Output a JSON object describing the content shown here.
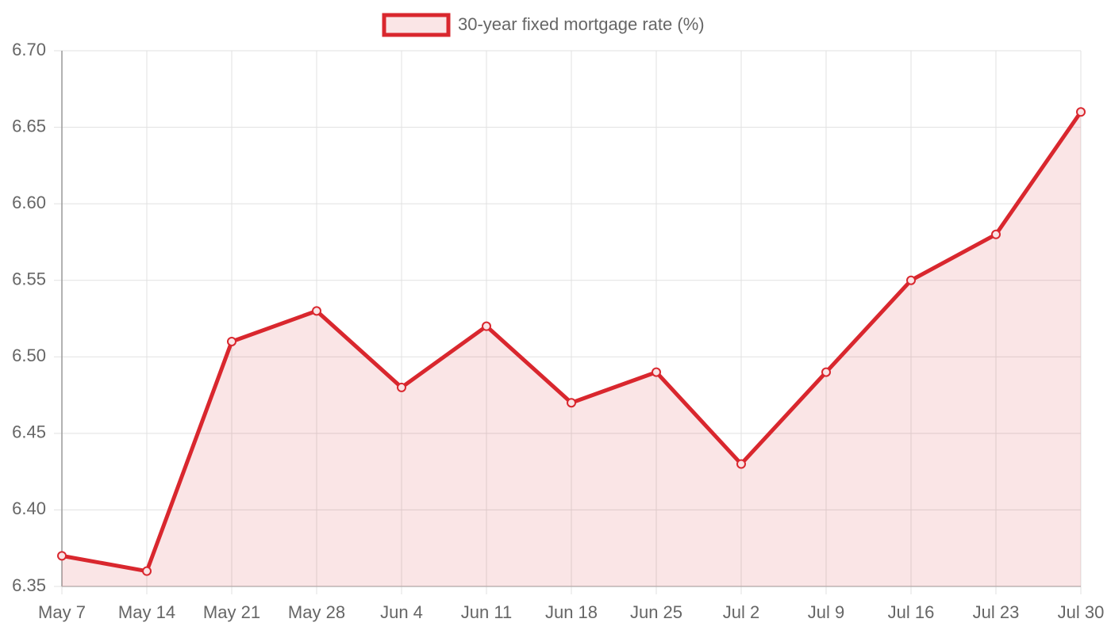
{
  "chart_data": {
    "type": "line",
    "categories": [
      "May 7",
      "May 14",
      "May 21",
      "May 28",
      "Jun 4",
      "Jun 11",
      "Jun 18",
      "Jun 25",
      "Jul 2",
      "Jul 9",
      "Jul 16",
      "Jul 23",
      "Jul 30"
    ],
    "series": [
      {
        "name": "30-year fixed mortgage rate (%)",
        "color": "#d9272e",
        "values": [
          6.37,
          6.36,
          6.51,
          6.53,
          6.48,
          6.52,
          6.47,
          6.49,
          6.43,
          6.49,
          6.55,
          6.58,
          6.66
        ]
      }
    ],
    "ylim": [
      6.35,
      6.7
    ],
    "yticks": [
      6.35,
      {
        "value": 6.4,
        "label": "6.40"
      },
      6.45,
      {
        "value": 6.5,
        "label": "6.50"
      },
      6.55,
      {
        "value": 6.6,
        "label": "6.60"
      },
      6.65,
      {
        "value": 6.7,
        "label": "6.70"
      }
    ],
    "grid": true,
    "fill": true,
    "legend": "top"
  }
}
